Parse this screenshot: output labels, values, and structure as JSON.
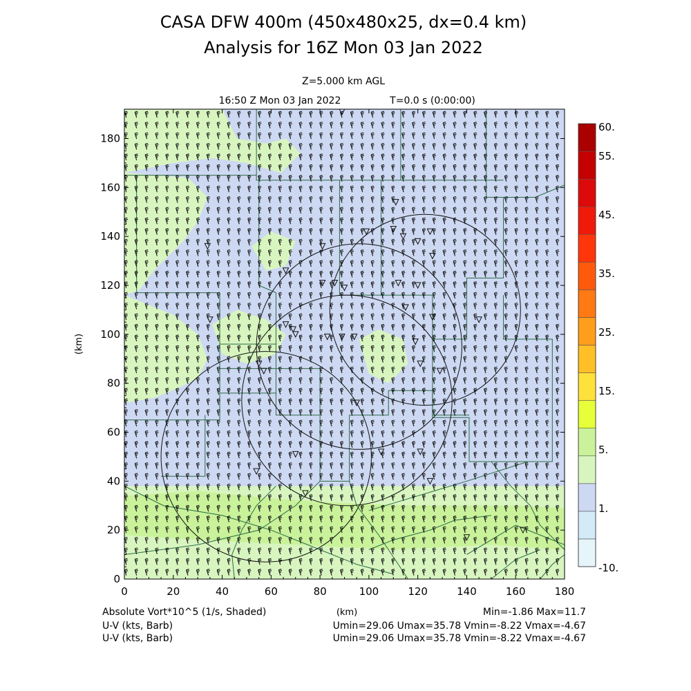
{
  "header": {
    "title_line1": "CASA DFW 400m (450x480x25, dx=0.4 km)",
    "title_line2": "Analysis for 16Z Mon 03 Jan 2022",
    "level": "Z=5.000 km AGL",
    "valid_time": "16:50 Z Mon 03 Jan 2022",
    "forecast_time": "T=0.0 s (0:00:00)"
  },
  "footer": {
    "field_label": "Absolute Vort*10^5 (1/s, Shaded)",
    "x_unit": "(km)",
    "min_max": "Min=-1.86 Max=11.7",
    "barb_label_1": "U-V (kts, Barb)",
    "barb_stats_1": "Umin=29.06 Umax=35.78 Vmin=-8.22 Vmax=-4.67",
    "barb_label_2": "U-V (kts, Barb)",
    "barb_stats_2": "Umin=29.06 Umax=35.78 Vmin=-8.22 Vmax=-4.67"
  },
  "chart_data": {
    "type": "heatmap",
    "title": "CASA DFW 400m (450x480x25, dx=0.4 km)",
    "xlabel": "(km)",
    "ylabel": "(km)",
    "xlim": [
      0,
      180
    ],
    "ylim": [
      0,
      192
    ],
    "x_ticks": [
      "0",
      "20",
      "40",
      "60",
      "80",
      "100",
      "120",
      "140",
      "160",
      "180"
    ],
    "y_ticks": [
      "0",
      "20",
      "40",
      "60",
      "80",
      "100",
      "120",
      "140",
      "160",
      "180"
    ],
    "field": "Absolute Vorticity x10^5 (1/s)",
    "field_min": -1.86,
    "field_max": 11.7,
    "colorbar": {
      "labels": [
        "60.",
        "55.",
        "45.",
        "35.",
        "25.",
        "15.",
        "5.",
        "1.",
        "-10."
      ],
      "colors": [
        "#e6f5fa",
        "#d2ebf7",
        "#cdd8f2",
        "#d8f5c0",
        "#c9f29a",
        "#e6ff38",
        "#ffe13c",
        "#ffbf26",
        "#ff9e1a",
        "#ff7a12",
        "#ff5a0c",
        "#ff360a",
        "#f01a0a",
        "#dc0a0a",
        "#c40000",
        "#aa0000"
      ]
    },
    "shading_colors": {
      "background": "#cdd8f2",
      "vorticity_5_10": "#d8f5c0",
      "vorticity_10_15": "#c9f29a"
    },
    "radar_range_rings": [
      {
        "center": [
          123,
          110
        ],
        "radius": 39
      },
      {
        "center": [
          96,
          95
        ],
        "radius": 42
      },
      {
        "center": [
          91,
          73
        ],
        "radius": 43
      },
      {
        "center": [
          58,
          50
        ],
        "radius": 43
      }
    ],
    "wind_barbs": {
      "u_range_kts": [
        29.06,
        35.78
      ],
      "v_range_kts": [
        -8.22,
        -4.67
      ],
      "direction": "WNW"
    }
  }
}
